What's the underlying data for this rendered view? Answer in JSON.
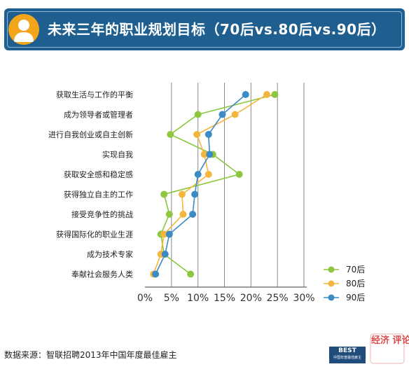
{
  "title": "未来三年的职业规划目标（70后vs.80后vs.90后）",
  "source": "数据来源：智联招聘2013年中国年度最佳雇主",
  "logo_text": "BEST",
  "watermark_text": "经济 评论",
  "chart_data": {
    "type": "line",
    "orientation": "horizontal",
    "title": "",
    "xlabel": "",
    "ylabel": "",
    "xlim": [
      0,
      30
    ],
    "x_ticks": [
      "0%",
      "5%",
      "10%",
      "15%",
      "20%",
      "25%",
      "30%"
    ],
    "grid": "vertical",
    "legend": "bottom-right",
    "categories": [
      "获取生活与工作的平衡",
      "成为领导者或管理者",
      "进行自我创业或自主创新",
      "实现自我",
      "获取安全感和稳定感",
      "获得独立自主的工作",
      "接受竞争性的挑战",
      "获得国际化的职业生涯",
      "成为技术专家",
      "奉献社会服务人类"
    ],
    "series": [
      {
        "name": "70后",
        "color": "#8dc63f",
        "values": [
          24.5,
          10,
          4.8,
          12.8,
          17.8,
          3.6,
          4.6,
          3,
          3.6,
          8.6
        ]
      },
      {
        "name": "80后",
        "color": "#f4b73e",
        "values": [
          23,
          17,
          9.8,
          11.2,
          12,
          7,
          7.2,
          3.6,
          3,
          1.6
        ]
      },
      {
        "name": "90后",
        "color": "#3d8bc4",
        "values": [
          19,
          14.6,
          12,
          12.2,
          10,
          9.4,
          9,
          4.6,
          3.8,
          2
        ]
      }
    ]
  }
}
